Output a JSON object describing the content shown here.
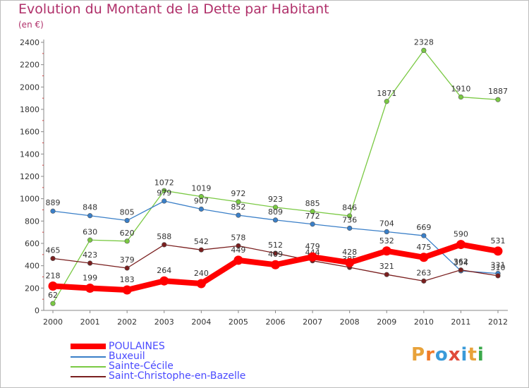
{
  "title": "Evolution du Montant de la Dette par Habitant",
  "subtitle": "(en €)",
  "logo": {
    "text": "Proxiti",
    "colors": [
      "#e8a23a",
      "#f07a2a",
      "#3a9ad9",
      "#e04a3a",
      "#3a9ad9",
      "#e8a23a",
      "#3aa84a"
    ]
  },
  "chart_data": {
    "type": "line",
    "x": [
      "2000",
      "2001",
      "2002",
      "2003",
      "2004",
      "2005",
      "2006",
      "2007",
      "2008",
      "2009",
      "2010",
      "2011",
      "2012"
    ],
    "ylim": [
      0,
      2400
    ],
    "yticks": [
      0,
      200,
      400,
      600,
      800,
      1000,
      1200,
      1400,
      1600,
      1800,
      2000,
      2200,
      2400
    ],
    "grid": false,
    "legend_position": "bottom-left",
    "series": [
      {
        "name": "POULAINES",
        "color": "#ff0000",
        "values": [
          218,
          199,
          183,
          264,
          240,
          449,
          409,
          479,
          428,
          532,
          475,
          590,
          531
        ]
      },
      {
        "name": "Buxeuil",
        "color": "#3a7fc8",
        "values": [
          889,
          848,
          805,
          979,
          907,
          852,
          809,
          772,
          736,
          704,
          669,
          354,
          331
        ]
      },
      {
        "name": "Sainte-Cécile",
        "color": "#7ac943",
        "values": [
          62,
          630,
          620,
          1072,
          1019,
          972,
          923,
          885,
          846,
          1871,
          2328,
          1910,
          1887
        ]
      },
      {
        "name": "Saint-Christophe-en-Bazelle",
        "color": "#7a1f1f",
        "values": [
          465,
          423,
          379,
          588,
          542,
          578,
          512,
          444,
          385,
          321,
          263,
          362,
          310
        ]
      }
    ]
  }
}
